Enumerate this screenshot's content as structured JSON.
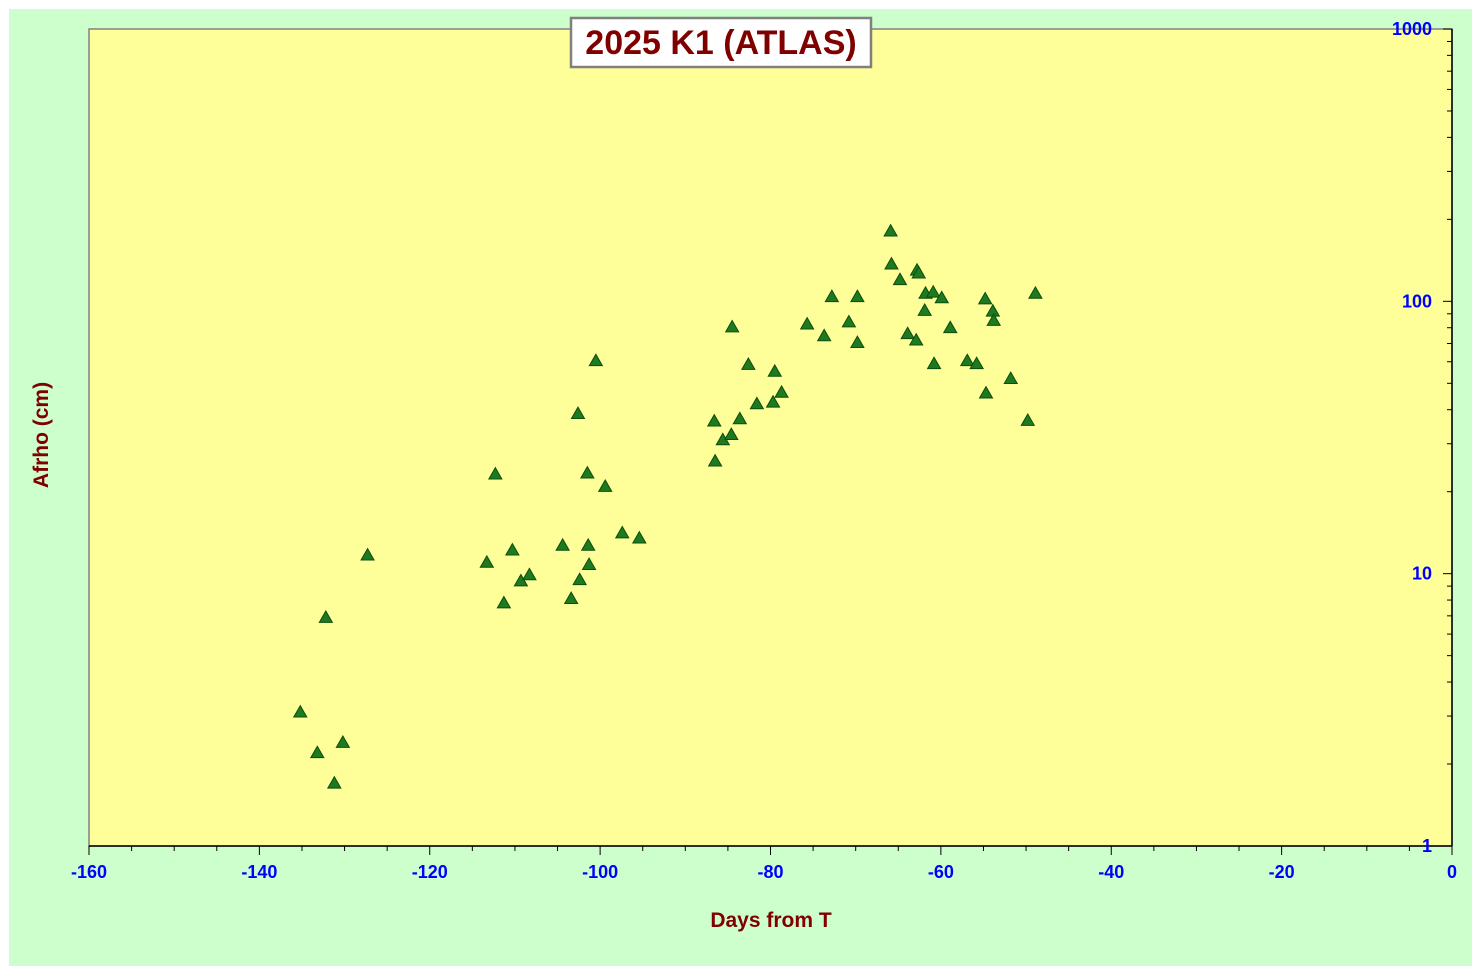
{
  "chart_data": {
    "type": "scatter",
    "title": "2025 K1 (ATLAS)",
    "xlabel": "Days from T",
    "ylabel": "Afrho (cm)",
    "xlim": [
      -160,
      0
    ],
    "ylim": [
      1,
      1000
    ],
    "yscale": "log",
    "y_axis_position": "right",
    "grid": false,
    "x_ticks": [
      "-160",
      "-140",
      "-120",
      "-100",
      "-80",
      "-60",
      "-40",
      "-20",
      "0"
    ],
    "y_ticks": [
      "1",
      "10",
      "100",
      "1000"
    ],
    "colors": {
      "outer_background": "#ccffcc",
      "plot_background": "#ffff99",
      "marker": "#1e7a1e",
      "marker_stroke": "#0d4d0d",
      "title_text": "#800000",
      "axis_label_text": "#800000",
      "tick_text": "#0000ff"
    },
    "marker": "triangle-icon",
    "points": [
      [
        -135.2,
        3.1
      ],
      [
        -133.2,
        2.2
      ],
      [
        -132.2,
        6.9
      ],
      [
        -131.2,
        1.7
      ],
      [
        -130.2,
        2.4
      ],
      [
        -127.3,
        11.7
      ],
      [
        -113.3,
        11.0
      ],
      [
        -112.3,
        23.2
      ],
      [
        -111.3,
        7.8
      ],
      [
        -110.3,
        12.2
      ],
      [
        -109.3,
        9.4
      ],
      [
        -108.3,
        9.9
      ],
      [
        -104.4,
        12.7
      ],
      [
        -103.4,
        8.1
      ],
      [
        -102.6,
        38.7
      ],
      [
        -102.4,
        9.5
      ],
      [
        -101.5,
        23.4
      ],
      [
        -101.4,
        12.7
      ],
      [
        -101.3,
        10.8
      ],
      [
        -100.5,
        60.5
      ],
      [
        -99.4,
        20.9
      ],
      [
        -97.4,
        14.1
      ],
      [
        -95.4,
        13.5
      ],
      [
        -86.6,
        36.3
      ],
      [
        -86.5,
        25.9
      ],
      [
        -85.6,
        31.0
      ],
      [
        -84.6,
        32.4
      ],
      [
        -84.5,
        80.5
      ],
      [
        -83.6,
        37.0
      ],
      [
        -82.6,
        58.6
      ],
      [
        -81.6,
        42.0
      ],
      [
        -79.7,
        42.6
      ],
      [
        -79.5,
        55.3
      ],
      [
        -78.7,
        46.3
      ],
      [
        -75.7,
        82.5
      ],
      [
        -73.7,
        74.7
      ],
      [
        -72.8,
        104.0
      ],
      [
        -70.8,
        84.0
      ],
      [
        -69.8,
        104.0
      ],
      [
        -69.8,
        70.5
      ],
      [
        -65.9,
        181.0
      ],
      [
        -65.8,
        137.0
      ],
      [
        -64.8,
        120.0
      ],
      [
        -63.9,
        76.0
      ],
      [
        -62.9,
        72.0
      ],
      [
        -62.8,
        130.0
      ],
      [
        -62.6,
        127.0
      ],
      [
        -61.9,
        92.5
      ],
      [
        -61.8,
        107.0
      ],
      [
        -60.9,
        108.0
      ],
      [
        -60.8,
        59.0
      ],
      [
        -59.9,
        103.0
      ],
      [
        -58.9,
        80.0
      ],
      [
        -56.9,
        60.5
      ],
      [
        -55.8,
        59.0
      ],
      [
        -54.8,
        102.0
      ],
      [
        -54.7,
        46.0
      ],
      [
        -53.9,
        92.0
      ],
      [
        -53.8,
        85.0
      ],
      [
        -51.8,
        52.0
      ],
      [
        -49.8,
        36.5
      ],
      [
        -48.9,
        107.0
      ]
    ]
  }
}
